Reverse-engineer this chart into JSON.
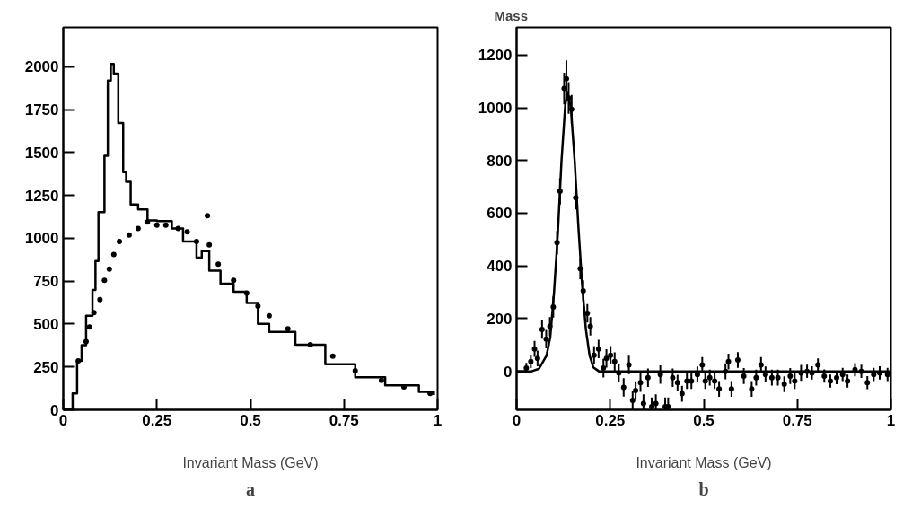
{
  "chart_data": [
    {
      "type": "step",
      "xlabel": "Invariant Mass (GeV)",
      "xlim": [
        0,
        1
      ],
      "xticks": [
        0,
        0.25,
        0.5,
        0.75,
        1
      ],
      "ylim": [
        0,
        2230
      ],
      "yticks": [
        0,
        250,
        500,
        750,
        1000,
        1250,
        1500,
        1750,
        2000
      ],
      "grid": false,
      "annotations": [
        "a"
      ],
      "series": [
        {
          "color": "#000000",
          "x": [
            0.0,
            0.025,
            0.037,
            0.049,
            0.061,
            0.078,
            0.086,
            0.094,
            0.11,
            0.119,
            0.127,
            0.135,
            0.147,
            0.16,
            0.168,
            0.18,
            0.2,
            0.225,
            0.25,
            0.29,
            0.32,
            0.356,
            0.37,
            0.39,
            0.42,
            0.455,
            0.49,
            0.52,
            0.55,
            0.62,
            0.7,
            0.78,
            0.86,
            0.95,
            0.99
          ],
          "values": [
            0,
            96,
            285,
            377,
            548,
            699,
            868,
            1153,
            1481,
            1920,
            2017,
            1960,
            1672,
            1386,
            1329,
            1198,
            1169,
            1104,
            1100,
            1057,
            981,
            887,
            925,
            812,
            736,
            689,
            623,
            501,
            454,
            379,
            266,
            190,
            143,
            105,
            87
          ]
        },
        {
          "type": "scatter",
          "marker": "circle",
          "color": "#000000",
          "x": [
            0.04,
            0.061,
            0.07,
            0.082,
            0.098,
            0.11,
            0.123,
            0.135,
            0.15,
            0.176,
            0.2,
            0.225,
            0.25,
            0.274,
            0.307,
            0.331,
            0.356,
            0.385,
            0.39,
            0.414,
            0.455,
            0.49,
            0.52,
            0.55,
            0.6,
            0.66,
            0.72,
            0.78,
            0.85,
            0.91,
            0.98
          ],
          "values": [
            285,
            398,
            483,
            567,
            642,
            755,
            821,
            906,
            981,
            1019,
            1057,
            1096,
            1077,
            1077,
            1057,
            1038,
            981,
            1132,
            962,
            849,
            755,
            680,
            604,
            548,
            472,
            379,
            313,
            228,
            171,
            134,
            96
          ]
        }
      ]
    },
    {
      "type": "scatter",
      "ylabel": "Mass",
      "xlabel": "Invariant Mass (GeV)",
      "xlim": [
        0,
        1
      ],
      "xticks": [
        0,
        0.25,
        0.5,
        0.75,
        1
      ],
      "ylim": [
        -146,
        1305
      ],
      "yticks": [
        0,
        200,
        400,
        600,
        800,
        1000,
        1200
      ],
      "grid": false,
      "annotations": [
        "b"
      ],
      "series": [
        {
          "marker": "circle",
          "color": "#000000",
          "x": [
            0.026,
            0.038,
            0.048,
            0.056,
            0.068,
            0.079,
            0.089,
            0.098,
            0.108,
            0.116,
            0.127,
            0.133,
            0.139,
            0.147,
            0.158,
            0.17,
            0.178,
            0.189,
            0.197,
            0.207,
            0.219,
            0.232,
            0.24,
            0.251,
            0.262,
            0.273,
            0.286,
            0.3,
            0.31,
            0.318,
            0.331,
            0.339,
            0.351,
            0.361,
            0.372,
            0.384,
            0.397,
            0.405,
            0.417,
            0.43,
            0.442,
            0.455,
            0.467,
            0.483,
            0.496,
            0.504,
            0.516,
            0.529,
            0.541,
            0.558,
            0.566,
            0.574,
            0.591,
            0.607,
            0.628,
            0.64,
            0.653,
            0.665,
            0.682,
            0.698,
            0.715,
            0.731,
            0.743,
            0.76,
            0.776,
            0.789,
            0.805,
            0.822,
            0.838,
            0.855,
            0.871,
            0.884,
            0.904,
            0.921,
            0.937,
            0.954,
            0.97,
            0.991
          ],
          "values": [
            12,
            37,
            85,
            49,
            159,
            122,
            171,
            244,
            488,
            683,
            1073,
            1110,
            1037,
            994,
            659,
            390,
            305,
            220,
            171,
            61,
            85,
            12,
            49,
            61,
            37,
            -6,
            -61,
            24,
            -110,
            -73,
            -43,
            -122,
            -24,
            -134,
            -122,
            -12,
            -134,
            -134,
            -24,
            -43,
            -85,
            -37,
            -37,
            -12,
            24,
            -37,
            -24,
            -37,
            -67,
            0,
            37,
            -67,
            43,
            -18,
            -67,
            -24,
            24,
            -12,
            -24,
            -24,
            -49,
            -18,
            -37,
            -6,
            0,
            -6,
            24,
            -18,
            -37,
            -24,
            -12,
            -37,
            6,
            0,
            -43,
            -12,
            -6,
            -12
          ],
          "errors": [
            20,
            25,
            30,
            30,
            35,
            35,
            35,
            40,
            45,
            50,
            60,
            70,
            60,
            55,
            45,
            40,
            40,
            35,
            35,
            35,
            35,
            35,
            35,
            35,
            35,
            35,
            35,
            35,
            35,
            35,
            35,
            35,
            35,
            35,
            35,
            35,
            35,
            35,
            35,
            30,
            30,
            30,
            30,
            30,
            30,
            30,
            30,
            30,
            30,
            30,
            30,
            30,
            30,
            30,
            30,
            30,
            30,
            30,
            30,
            30,
            30,
            30,
            30,
            30,
            25,
            25,
            25,
            25,
            25,
            25,
            25,
            25,
            25,
            25,
            25,
            25,
            25,
            25
          ]
        },
        {
          "type": "line",
          "color": "#000000",
          "x": [
            0,
            0.04,
            0.06,
            0.08,
            0.09,
            0.1,
            0.11,
            0.12,
            0.13,
            0.136,
            0.145,
            0.155,
            0.165,
            0.175,
            0.185,
            0.195,
            0.205,
            0.22,
            1
          ],
          "values": [
            0,
            0,
            10,
            60,
            130,
            300,
            520,
            800,
            1010,
            1060,
            1000,
            800,
            550,
            330,
            160,
            60,
            15,
            0,
            0
          ]
        }
      ]
    }
  ]
}
